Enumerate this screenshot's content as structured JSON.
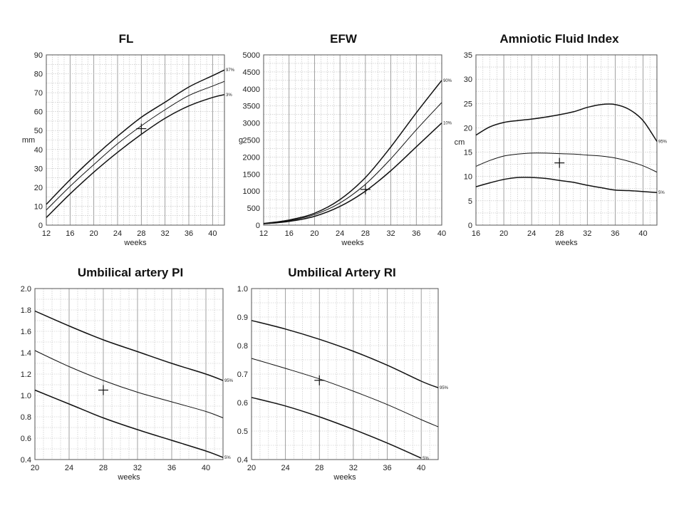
{
  "chart_data": [
    {
      "id": "fl",
      "type": "line",
      "title": "FL",
      "xlabel": "weeks",
      "ylabel": "mm",
      "xlim": [
        12,
        42
      ],
      "ylim": [
        0,
        90
      ],
      "xticks": [
        12,
        16,
        20,
        24,
        28,
        32,
        36,
        40
      ],
      "yticks": [
        0,
        10,
        20,
        30,
        40,
        50,
        60,
        70,
        80,
        90
      ],
      "grid": true,
      "series": [
        {
          "name": "97%",
          "x": [
            12,
            16,
            20,
            24,
            28,
            32,
            36,
            40,
            42
          ],
          "values": [
            11,
            24,
            36,
            47,
            57,
            65,
            73,
            79,
            82
          ]
        },
        {
          "name": "",
          "x": [
            12,
            16,
            20,
            24,
            28,
            32,
            36,
            40,
            42
          ],
          "values": [
            8,
            20.5,
            32,
            43,
            52.5,
            61,
            68.5,
            73.5,
            76
          ]
        },
        {
          "name": "3%",
          "x": [
            12,
            16,
            20,
            24,
            28,
            32,
            36,
            40,
            42
          ],
          "values": [
            4,
            16.5,
            28,
            38.5,
            48,
            56.5,
            63,
            67.5,
            69
          ]
        }
      ],
      "marker": {
        "x": 28,
        "y": 51
      }
    },
    {
      "id": "efw",
      "type": "line",
      "title": "EFW",
      "xlabel": "weeks",
      "ylabel": "g",
      "xlim": [
        12,
        40
      ],
      "ylim": [
        0,
        5000
      ],
      "xticks": [
        12,
        16,
        20,
        24,
        28,
        32,
        36,
        40
      ],
      "yticks": [
        0,
        500,
        1000,
        1500,
        2000,
        2500,
        3000,
        3500,
        4000,
        4500,
        5000
      ],
      "grid": true,
      "series": [
        {
          "name": "90%",
          "x": [
            12,
            16,
            20,
            24,
            28,
            32,
            36,
            40
          ],
          "values": [
            50,
            150,
            350,
            750,
            1400,
            2300,
            3300,
            4250
          ]
        },
        {
          "name": "",
          "x": [
            12,
            16,
            20,
            24,
            28,
            32,
            36,
            40
          ],
          "values": [
            45,
            130,
            310,
            650,
            1200,
            1950,
            2800,
            3600
          ]
        },
        {
          "name": "10%",
          "x": [
            12,
            16,
            20,
            24,
            28,
            32,
            36,
            40
          ],
          "values": [
            40,
            110,
            260,
            550,
            1000,
            1600,
            2300,
            3000
          ]
        }
      ],
      "marker": {
        "x": 28,
        "y": 1050
      }
    },
    {
      "id": "afi",
      "type": "line",
      "title": "Amniotic Fluid Index",
      "xlabel": "weeks",
      "ylabel": "cm",
      "xlim": [
        16,
        42
      ],
      "ylim": [
        0,
        35
      ],
      "xticks": [
        16,
        20,
        24,
        28,
        32,
        36,
        40
      ],
      "yticks": [
        0,
        5,
        10,
        15,
        20,
        25,
        30,
        35
      ],
      "grid": true,
      "series": [
        {
          "name": "95%",
          "x": [
            16,
            18,
            20,
            22,
            24,
            26,
            28,
            30,
            32,
            34,
            36,
            38,
            40,
            42
          ],
          "values": [
            18.5,
            20.2,
            21.1,
            21.5,
            21.8,
            22.2,
            22.7,
            23.3,
            24.2,
            24.8,
            24.8,
            23.8,
            21.5,
            17.2
          ]
        },
        {
          "name": "",
          "x": [
            16,
            18,
            20,
            22,
            24,
            26,
            28,
            30,
            32,
            34,
            36,
            38,
            40,
            42
          ],
          "values": [
            12.1,
            13.3,
            14.2,
            14.6,
            14.8,
            14.8,
            14.7,
            14.6,
            14.4,
            14.2,
            13.8,
            13.1,
            12.2,
            10.9
          ]
        },
        {
          "name": "5%",
          "x": [
            16,
            18,
            20,
            22,
            24,
            26,
            28,
            30,
            32,
            34,
            36,
            38,
            40,
            42
          ],
          "values": [
            7.9,
            8.7,
            9.4,
            9.8,
            9.8,
            9.6,
            9.2,
            8.8,
            8.2,
            7.7,
            7.2,
            7.1,
            6.9,
            6.7
          ]
        }
      ],
      "marker": {
        "x": 28,
        "y": 12.8
      }
    },
    {
      "id": "ua-pi",
      "type": "line",
      "title": "Umbilical artery PI",
      "xlabel": "weeks",
      "ylabel": "",
      "xlim": [
        20,
        42
      ],
      "ylim": [
        0.4,
        2.0
      ],
      "xticks": [
        20,
        24,
        28,
        32,
        36,
        40
      ],
      "yticks": [
        0.4,
        0.6,
        0.8,
        1.0,
        1.2,
        1.4,
        1.6,
        1.8,
        2.0
      ],
      "yformat": 1,
      "grid": true,
      "series": [
        {
          "name": "95%",
          "x": [
            20,
            24,
            28,
            32,
            36,
            40,
            42
          ],
          "values": [
            1.79,
            1.65,
            1.52,
            1.41,
            1.3,
            1.2,
            1.14
          ]
        },
        {
          "name": "",
          "x": [
            20,
            24,
            28,
            32,
            36,
            40,
            42
          ],
          "values": [
            1.42,
            1.27,
            1.14,
            1.03,
            0.94,
            0.85,
            0.79
          ]
        },
        {
          "name": "5%",
          "x": [
            20,
            24,
            28,
            32,
            36,
            40,
            42
          ],
          "values": [
            1.05,
            0.92,
            0.79,
            0.68,
            0.58,
            0.48,
            0.42
          ]
        }
      ],
      "marker": {
        "x": 28,
        "y": 1.05
      }
    },
    {
      "id": "ua-ri",
      "type": "line",
      "title": "Umbilical Artery RI",
      "xlabel": "weeks",
      "ylabel": "",
      "xlim": [
        20,
        42
      ],
      "ylim": [
        0.4,
        1.0
      ],
      "xticks": [
        20,
        24,
        28,
        32,
        36,
        40
      ],
      "yticks": [
        0.4,
        0.5,
        0.6,
        0.7,
        0.8,
        0.9,
        1.0
      ],
      "yformat": 1,
      "grid": true,
      "series": [
        {
          "name": "95%",
          "x": [
            20,
            24,
            28,
            32,
            36,
            40,
            42
          ],
          "values": [
            0.888,
            0.858,
            0.822,
            0.78,
            0.731,
            0.675,
            0.652
          ]
        },
        {
          "name": "",
          "x": [
            20,
            24,
            28,
            32,
            36,
            40,
            42
          ],
          "values": [
            0.755,
            0.72,
            0.683,
            0.64,
            0.593,
            0.54,
            0.515
          ]
        },
        {
          "name": "5%",
          "x": [
            20,
            24,
            28,
            32,
            36,
            40
          ],
          "values": [
            0.618,
            0.588,
            0.55,
            0.506,
            0.458,
            0.405
          ]
        }
      ],
      "marker": {
        "x": 28,
        "y": 0.678
      }
    }
  ]
}
